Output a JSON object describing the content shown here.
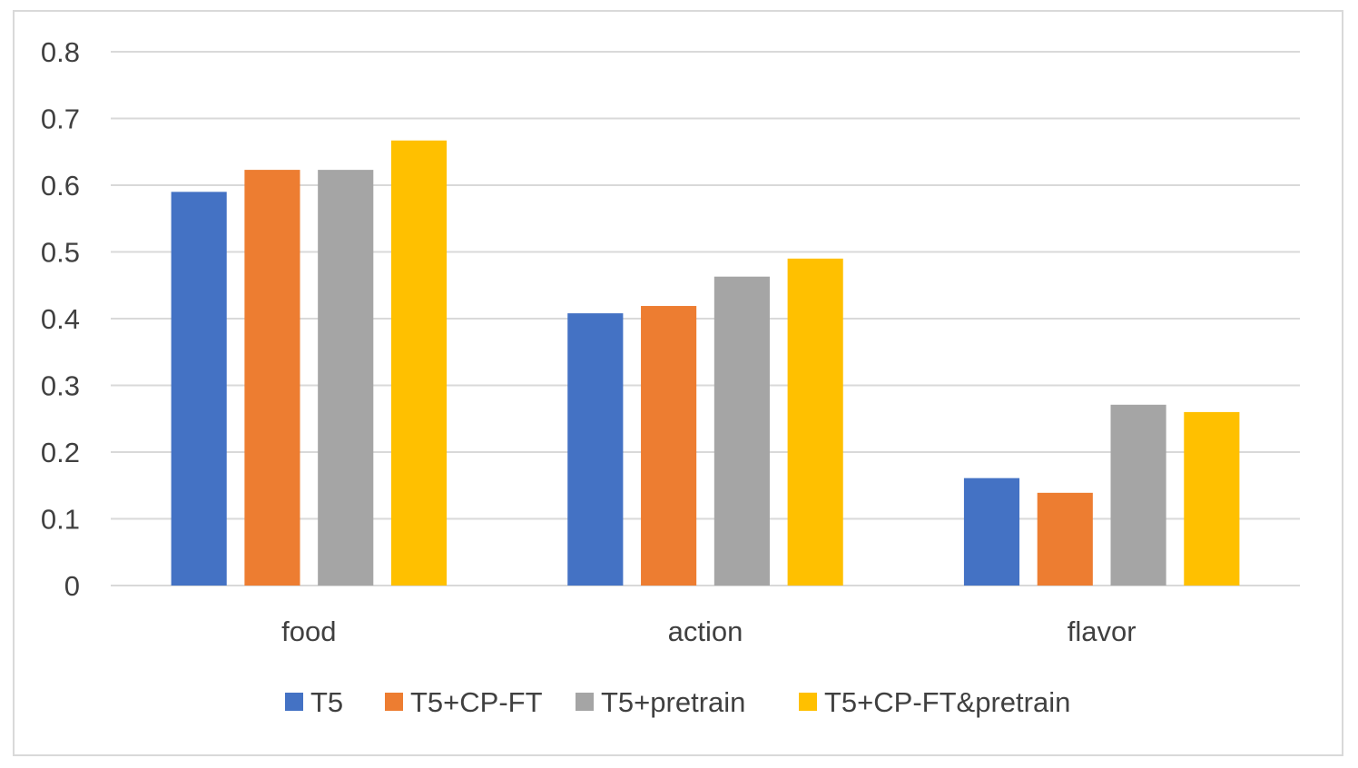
{
  "chart_data": {
    "type": "bar",
    "title": "",
    "xlabel": "",
    "ylabel": "",
    "categories": [
      "food",
      "action",
      "flavor"
    ],
    "series": [
      {
        "name": "T5",
        "color": "#4472C4",
        "values": [
          0.59,
          0.408,
          0.161
        ]
      },
      {
        "name": "T5+CP-FT",
        "color": "#ED7D31",
        "values": [
          0.623,
          0.419,
          0.139
        ]
      },
      {
        "name": "T5+pretrain",
        "color": "#A5A5A5",
        "values": [
          0.623,
          0.463,
          0.271
        ]
      },
      {
        "name": "T5+CP-FT&pretrain",
        "color": "#FFC000",
        "values": [
          0.667,
          0.49,
          0.26
        ]
      }
    ],
    "ylim": [
      0,
      0.8
    ],
    "yticks": [
      "0",
      "0.1",
      "0.2",
      "0.3",
      "0.4",
      "0.5",
      "0.6",
      "0.7",
      "0.8"
    ],
    "grid": true,
    "legend_position": "bottom"
  }
}
